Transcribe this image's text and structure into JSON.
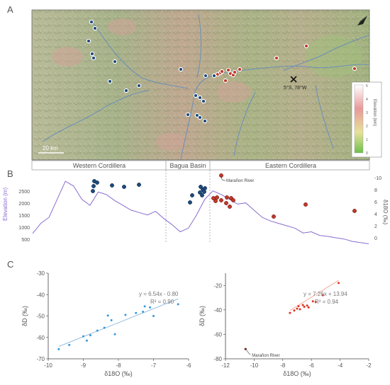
{
  "panel_labels": {
    "a": "A",
    "b": "B",
    "c": "C"
  },
  "map": {
    "scale_bar": "20 km",
    "coordinate_label": "5°S, 78°W",
    "north_arrow": "north-arrow-icon",
    "legend": {
      "title": "Elevation (km)",
      "ticks": [
        "5",
        "4",
        "3",
        "2",
        "1",
        "0"
      ]
    },
    "colors": {
      "blue_sites": "#1f4a7a",
      "red_sites": "#c0392b",
      "rivers": "#6a8fb8"
    }
  },
  "profile": {
    "regions": [
      "Western Cordillera",
      "Bagua Basin",
      "Eastern Cordillera"
    ],
    "annotation": "Marañon River",
    "ylabel_left": "Elevation (m)",
    "ylabel_right": "δ18O (‰)",
    "left_ticks": [
      "2500",
      "2000",
      "1500",
      "1000",
      "500"
    ],
    "right_ticks": [
      "-10",
      "8",
      "6",
      "4",
      "2",
      "0"
    ],
    "line_color": "#8a6ccf"
  },
  "chart_data": [
    {
      "type": "line",
      "panel": "B",
      "series": [
        {
          "values": [
            680,
            1100,
            1350,
            2100,
            2850,
            2650,
            2100,
            1850,
            2400,
            2300,
            2050,
            1850,
            1650,
            1550,
            1450,
            1600,
            1300,
            1050,
            750,
            900,
            1450,
            2100,
            2450,
            2300,
            2100,
            1900,
            1950,
            1650,
            1350,
            1200,
            1100,
            1000,
            900,
            700,
            750,
            600,
            560,
            500,
            450,
            350,
            300,
            250
          ]
        }
      ],
      "y_axes": {
        "left": [
          0,
          3000
        ],
        "right": [
          0,
          10
        ]
      }
    },
    {
      "type": "scatter",
      "panel": "C-left",
      "xlabel": "δ18O (‰)",
      "ylabel": "δD (‰)",
      "xlim": [
        -10,
        -6
      ],
      "ylim": [
        -70,
        -30
      ],
      "xticks": [
        "-10",
        "-9",
        "-8",
        "-7",
        "-6"
      ],
      "yticks": [
        "-30",
        "-40",
        "-50",
        "-60",
        "-70"
      ],
      "equation": "y = 6.54x - 0.80",
      "r2": "R² = 0.90",
      "color": "#3399dd",
      "points": [
        [
          -9.7,
          -65.5
        ],
        [
          -9.4,
          -63.5
        ],
        [
          -9.0,
          -59.5
        ],
        [
          -8.9,
          -61.5
        ],
        [
          -8.8,
          -59.0
        ],
        [
          -8.6,
          -56.8
        ],
        [
          -8.4,
          -55.5
        ],
        [
          -8.3,
          -49.8
        ],
        [
          -8.2,
          -52.0
        ],
        [
          -8.1,
          -58.5
        ],
        [
          -7.8,
          -49.5
        ],
        [
          -7.5,
          -48.6
        ],
        [
          -7.3,
          -48.0
        ],
        [
          -7.25,
          -45.5
        ],
        [
          -7.1,
          -46.0
        ],
        [
          -7.0,
          -50.0
        ],
        [
          -6.3,
          -44.5
        ]
      ]
    },
    {
      "type": "scatter",
      "panel": "C-right",
      "xlabel": "δ18O (‰)",
      "ylabel": "δD (‰)",
      "xlim": [
        -12,
        -2
      ],
      "ylim": [
        -80,
        -10
      ],
      "xticks": [
        "-12",
        "-10",
        "-8",
        "-6",
        "-4",
        "-2"
      ],
      "yticks": [
        "-20",
        "-40",
        "-60",
        "-80"
      ],
      "equation": "y = 7.26x + 13.94",
      "r2": "R² = 0.94",
      "color": "#dd3322",
      "annotation": "Marañon River",
      "points": [
        [
          -10.6,
          -72.0
        ],
        [
          -7.5,
          -42.5
        ],
        [
          -7.2,
          -40.5
        ],
        [
          -7.0,
          -39.0
        ],
        [
          -6.9,
          -37.0
        ],
        [
          -6.8,
          -39.5
        ],
        [
          -6.6,
          -36.0
        ],
        [
          -6.5,
          -37.5
        ],
        [
          -6.3,
          -36.5
        ],
        [
          -6.2,
          -38.0
        ],
        [
          -5.9,
          -33.0
        ],
        [
          -5.7,
          -33.5
        ],
        [
          -5.2,
          -28.0
        ],
        [
          -4.1,
          -18.0
        ]
      ]
    }
  ]
}
